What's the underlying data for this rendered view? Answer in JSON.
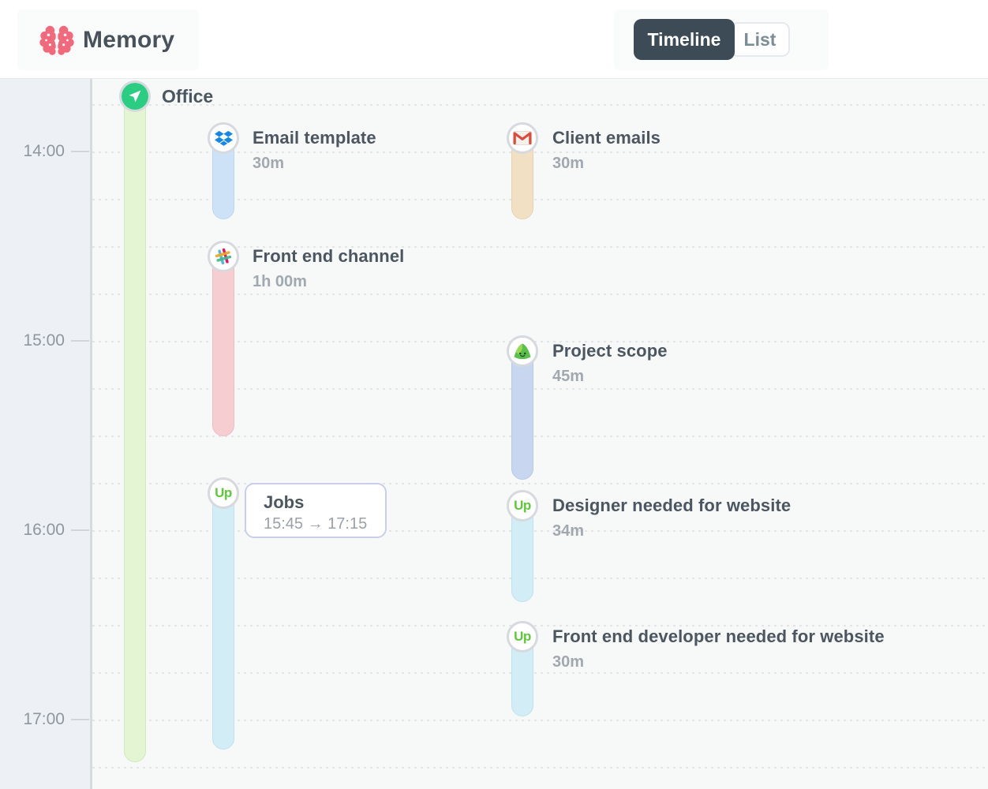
{
  "header": {
    "app_name": "Memory",
    "tabs": [
      {
        "label": "Timeline",
        "active": true
      },
      {
        "label": "List",
        "active": false
      }
    ]
  },
  "timeline": {
    "hour_labels": [
      "14:00",
      "15:00",
      "16:00",
      "17:00"
    ],
    "group": {
      "title": "Office",
      "icon": "send-icon",
      "color": "#e4f5d3"
    },
    "entries": [
      {
        "app": "dropbox",
        "title": "Email template",
        "duration": "30m",
        "color": "#cde2f6"
      },
      {
        "app": "gmail",
        "title": "Client emails",
        "duration": "30m",
        "color": "#f2e0c5"
      },
      {
        "app": "slack",
        "title": "Front end channel",
        "duration": "1h 00m",
        "color": "#f6ced2"
      },
      {
        "app": "basecamp",
        "title": "Project scope",
        "duration": "45m",
        "color": "#c8d7ef"
      },
      {
        "app": "upwork",
        "title": "Jobs",
        "duration": "",
        "color": "#d2edf6",
        "tooltip": {
          "title": "Jobs",
          "time_range": "15:45 → 17:15"
        }
      },
      {
        "app": "upwork",
        "title": "Designer needed for website",
        "duration": "34m",
        "color": "#d2edf6"
      },
      {
        "app": "upwork",
        "title": "Front end developer needed for website",
        "duration": "30m",
        "color": "#d2edf6"
      }
    ],
    "upwork_glyph": "Up"
  },
  "colors": {
    "brand_pink": "#f2697c",
    "active_tab_bg": "#3d4b57",
    "inactive_tab_text": "#7b8d98",
    "title_text": "#4c5660",
    "duration_text": "#a2a8af",
    "hour_text": "#8e969e",
    "gutter_bg": "#edf1f5",
    "canvas_bg": "#f7f8f8",
    "office_green_icon": "#2bcd83",
    "dropbox_blue": "#1687e8",
    "gmail_red": "#dd4b3e",
    "basecamp_green": "#5bbf4c",
    "upwork_green": "#5dc938"
  }
}
